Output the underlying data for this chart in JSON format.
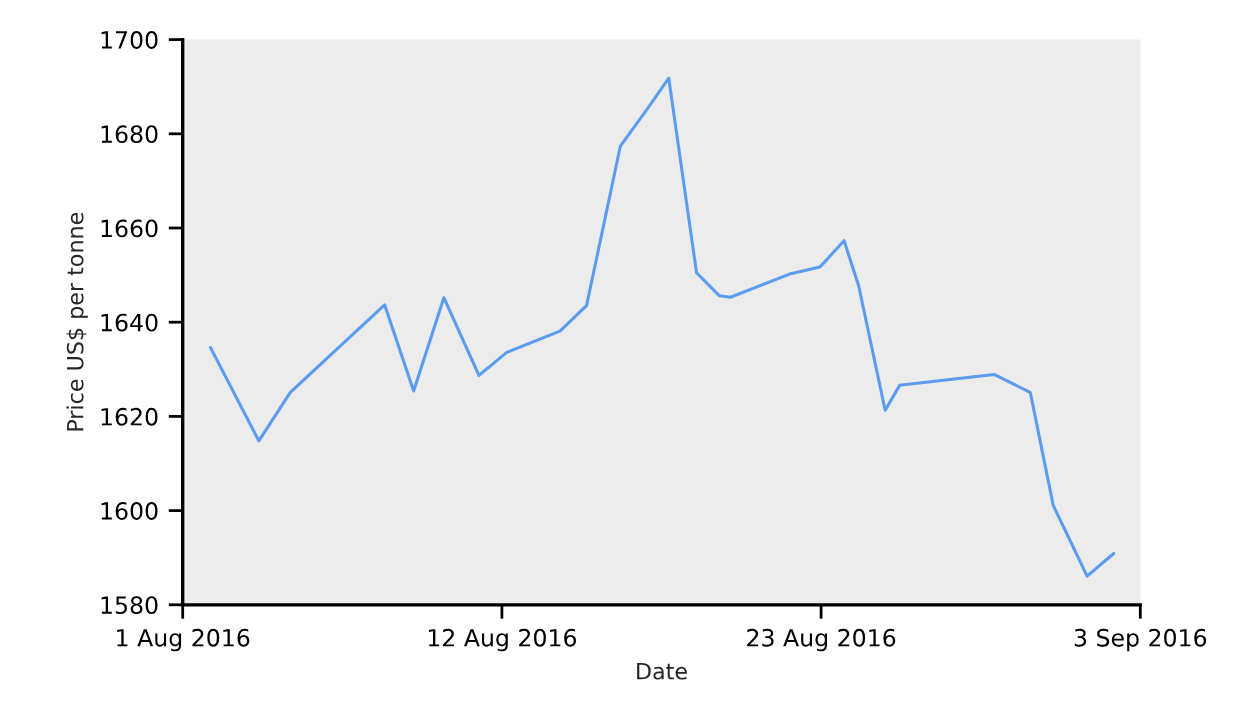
{
  "chart_data": {
    "type": "line",
    "xlabel": "Date",
    "ylabel": "Price US$ per tonne",
    "x": [
      "2016-08-01T23:00",
      "2016-08-03T15:00",
      "2016-08-04T17:00",
      "2016-08-07T23:00",
      "2016-08-08T23:00",
      "2016-08-10T00:00",
      "2016-08-11T05:00",
      "2016-08-12T04:00",
      "2016-08-14T00:00",
      "2016-08-14T22:00",
      "2016-08-16T02:00",
      "2016-08-17T00:00",
      "2016-08-17T18:00",
      "2016-08-18T17:00",
      "2016-08-19T12:00",
      "2016-08-19T21:00",
      "2016-08-21T23:00",
      "2016-08-22T23:00",
      "2016-08-23T19:00",
      "2016-08-24T07:00",
      "2016-08-25T05:00",
      "2016-08-25T17:00",
      "2016-08-28T23:00",
      "2016-08-30T05:00",
      "2016-08-31T00:00",
      "2016-09-01T04:00",
      "2016-09-02T02:00"
    ],
    "series": [
      {
        "color": "#5b9cf0",
        "values": [
          1634.6,
          1614.8,
          1625.1,
          1643.7,
          1625.4,
          1645.2,
          1628.7,
          1633.6,
          1638.1,
          1643.5,
          1677.4,
          1685.2,
          1691.8,
          1650.5,
          1645.6,
          1645.3,
          1650.3,
          1651.7,
          1657.3,
          1647.8,
          1621.3,
          1626.6,
          1628.9,
          1625.1,
          1601.1,
          1586.1,
          1590.9
        ]
      }
    ],
    "xlim": [
      "2016-08-01",
      "2016-09-03"
    ],
    "xticks": [
      {
        "value": "2016-08-01",
        "label": "1 Aug 2016"
      },
      {
        "value": "2016-08-12",
        "label": "12 Aug 2016"
      },
      {
        "value": "2016-08-23",
        "label": "23 Aug 2016"
      },
      {
        "value": "2016-09-03",
        "label": "3 Sep 2016"
      }
    ],
    "ylim": [
      1580,
      1700
    ],
    "yticks": [
      1580,
      1600,
      1620,
      1640,
      1660,
      1680,
      1700
    ],
    "grid": false,
    "marker": "none",
    "line_style": "solid"
  }
}
